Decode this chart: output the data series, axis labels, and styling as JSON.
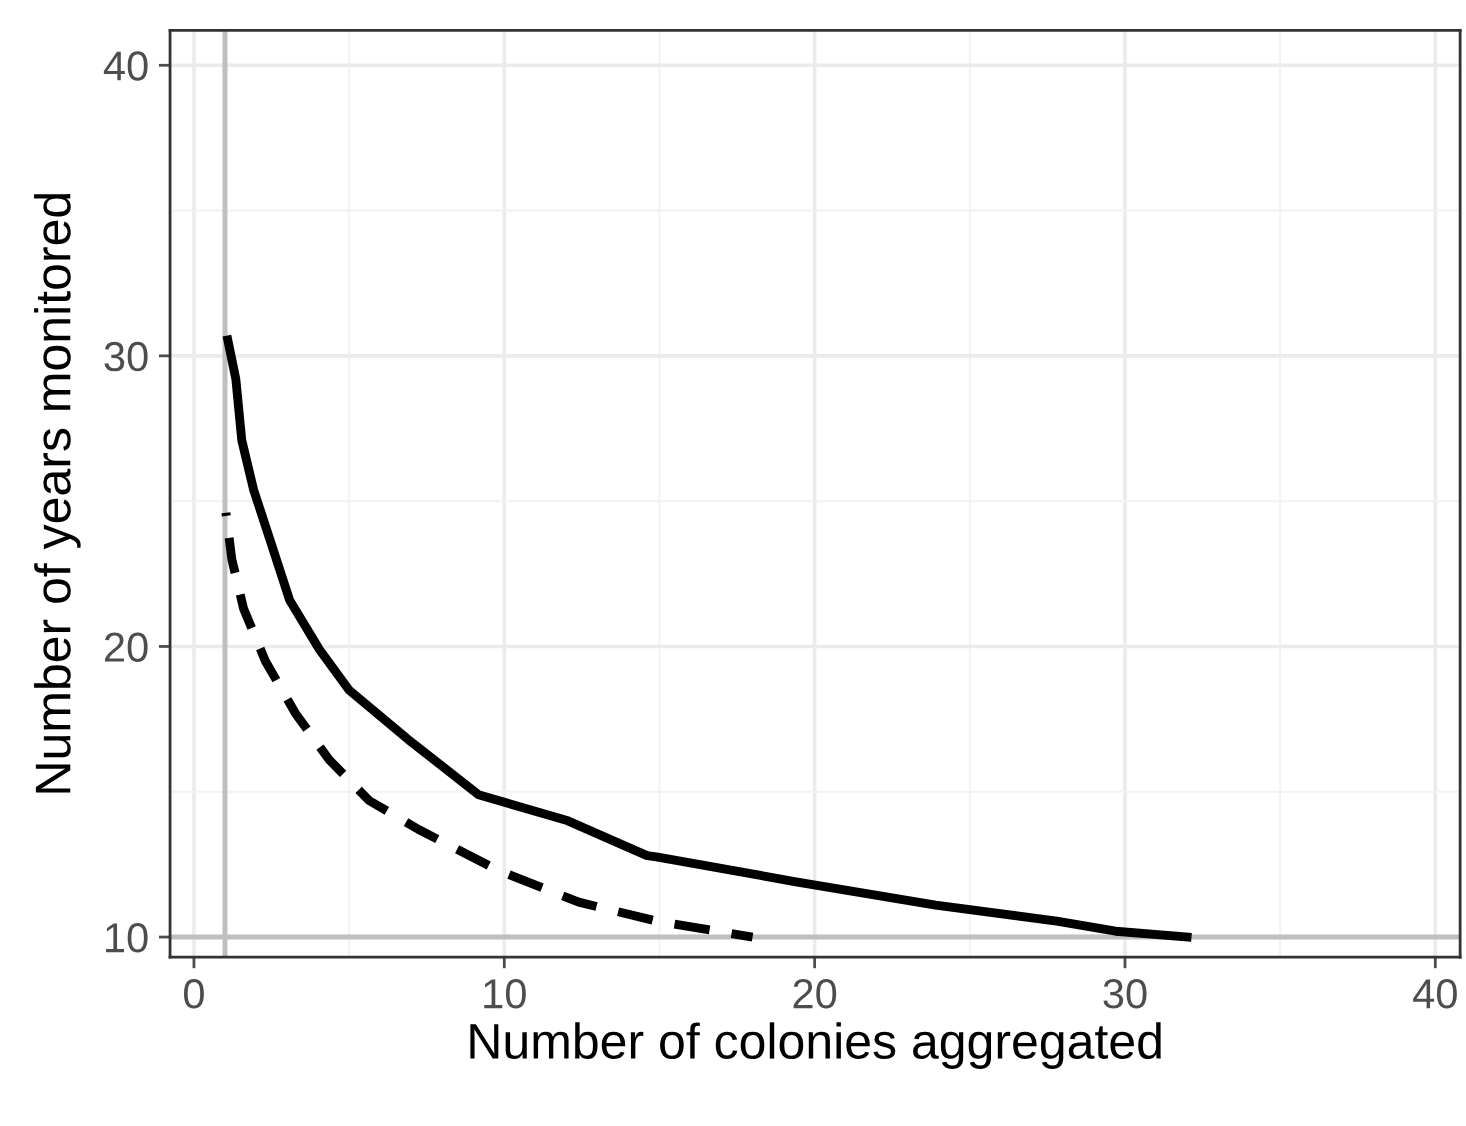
{
  "chart_data": {
    "type": "line",
    "xlabel": "Number of colonies aggregated",
    "ylabel": "Number of years monitored",
    "xlim": [
      -0.77,
      40.8
    ],
    "ylim": [
      9.31,
      41.2
    ],
    "xticks": [
      0,
      10,
      20,
      30,
      40
    ],
    "yticks": [
      10,
      20,
      30,
      40
    ],
    "grid": true,
    "marker": "none",
    "series": [
      {
        "color": "#000000",
        "line_style": "solid",
        "x": [
          1.09,
          1.35,
          1.54,
          1.92,
          2.44,
          3.08,
          4.04,
          5.0,
          6.9,
          9.17,
          12.05,
          14.6,
          14.9,
          19.4,
          23.9,
          27.8,
          29.7,
          32.0
        ],
        "values": [
          30.55,
          29.2,
          27.1,
          25.4,
          23.7,
          21.6,
          19.9,
          18.5,
          16.8,
          14.9,
          14.0,
          12.8,
          12.76,
          11.9,
          11.1,
          10.55,
          10.2,
          10.0
        ]
      },
      {
        "color": "#000000",
        "line_style": "dashed",
        "x": [
          1.03,
          1.22,
          1.6,
          2.3,
          3.27,
          4.36,
          5.64,
          7.24,
          9.8,
          12.4,
          14.9,
          18.0
        ],
        "values": [
          24.6,
          23.0,
          21.3,
          19.5,
          17.7,
          16.1,
          14.7,
          13.7,
          12.3,
          11.2,
          10.55,
          10.0
        ]
      }
    ],
    "ref_lines": [
      {
        "axis": "x",
        "value": 1,
        "color": "#bfbfbf"
      },
      {
        "axis": "y",
        "value": 10,
        "color": "#bfbfbf"
      }
    ]
  }
}
